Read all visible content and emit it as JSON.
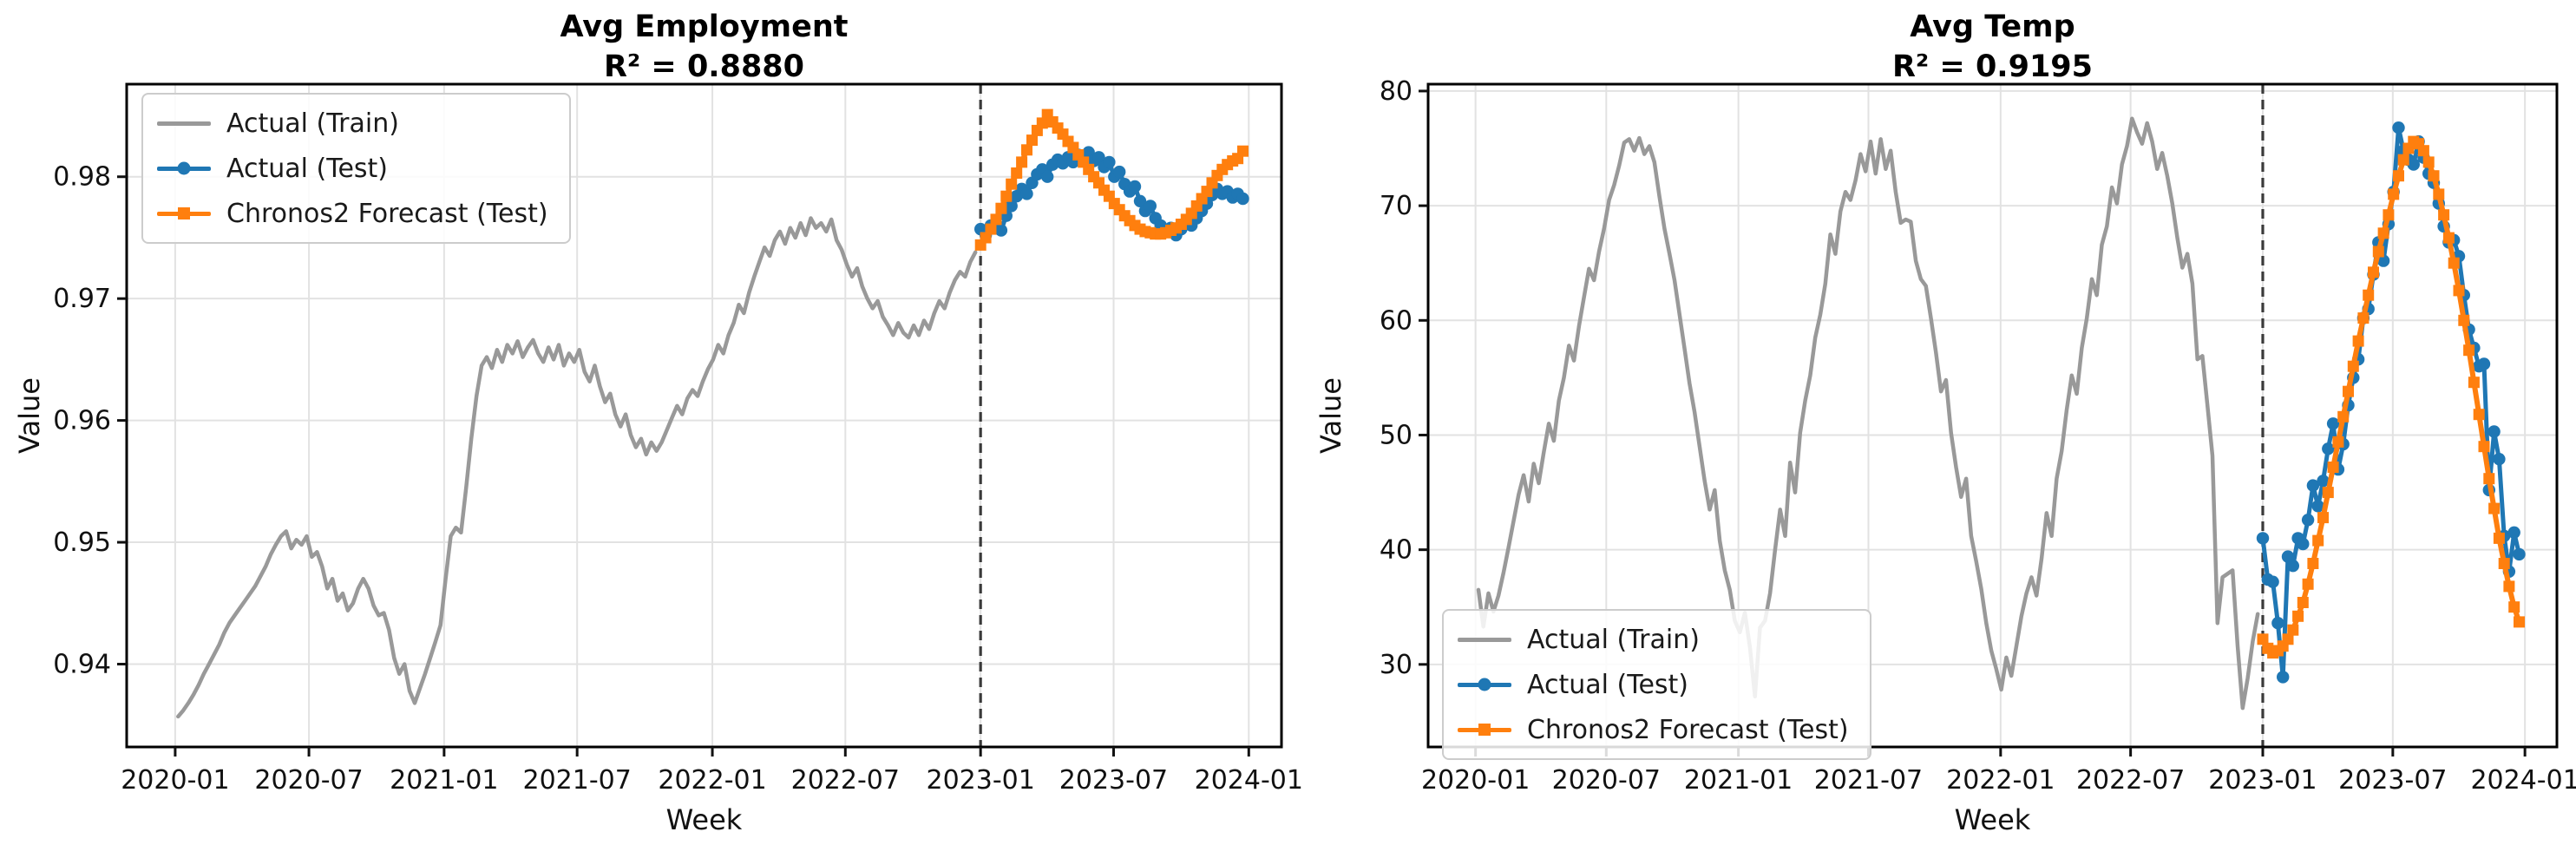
{
  "style": {
    "background": "#ffffff",
    "grid_color": "#e2e2e2",
    "spine_color": "#000000",
    "tick_color": "#111111",
    "split_line_color": "#3a3a3a",
    "train_color": "#999999",
    "test_color": "#1f77b4",
    "forecast_color": "#ff7f0e"
  },
  "chart_data": [
    {
      "type": "line",
      "title": "Avg Employment",
      "subtitle": "R² = 0.8880",
      "r_squared": 0.888,
      "xlabel": "Week",
      "ylabel": "Value",
      "legend_position": "upper-left",
      "grid": true,
      "ylim": [
        0.9332,
        0.9876
      ],
      "xlim_weeks": [
        -10.0,
        214.5
      ],
      "split_week": 156,
      "x_start_date": "2020-01-05",
      "x_freq": "weekly",
      "y_ticks": [
        {
          "value": 0.94,
          "label": "0.94"
        },
        {
          "value": 0.95,
          "label": "0.95"
        },
        {
          "value": 0.96,
          "label": "0.96"
        },
        {
          "value": 0.97,
          "label": "0.97"
        },
        {
          "value": 0.98,
          "label": "0.98"
        }
      ],
      "x_ticks": [
        {
          "week": -0.57,
          "label": "2020-01"
        },
        {
          "week": 25.43,
          "label": "2020-07"
        },
        {
          "week": 51.71,
          "label": "2021-01"
        },
        {
          "week": 77.57,
          "label": "2021-07"
        },
        {
          "week": 103.86,
          "label": "2022-01"
        },
        {
          "week": 129.71,
          "label": "2022-07"
        },
        {
          "week": 156.0,
          "label": "2023-01"
        },
        {
          "week": 181.86,
          "label": "2023-07"
        },
        {
          "week": 208.14,
          "label": "2024-01"
        }
      ],
      "series": [
        {
          "name": "Actual (Train)",
          "color": "#999999",
          "marker": "none",
          "line_width": 4.5,
          "start_week": 0,
          "values": [
            0.9357,
            0.9362,
            0.9368,
            0.9375,
            0.9383,
            0.9392,
            0.94,
            0.9408,
            0.9416,
            0.9426,
            0.9434,
            0.944,
            0.9446,
            0.9452,
            0.9458,
            0.9464,
            0.9472,
            0.948,
            0.949,
            0.9498,
            0.9505,
            0.9509,
            0.9495,
            0.9502,
            0.9498,
            0.9505,
            0.9488,
            0.9492,
            0.948,
            0.9462,
            0.947,
            0.9452,
            0.9458,
            0.9444,
            0.945,
            0.9462,
            0.947,
            0.9462,
            0.9448,
            0.944,
            0.9442,
            0.9428,
            0.9405,
            0.9392,
            0.94,
            0.9378,
            0.9368,
            0.938,
            0.9392,
            0.9405,
            0.9418,
            0.9432,
            0.947,
            0.9505,
            0.9512,
            0.9508,
            0.9545,
            0.9585,
            0.962,
            0.9645,
            0.9652,
            0.9643,
            0.9658,
            0.9648,
            0.9662,
            0.9655,
            0.9665,
            0.9652,
            0.966,
            0.9666,
            0.9655,
            0.9648,
            0.966,
            0.965,
            0.9662,
            0.9645,
            0.9655,
            0.9648,
            0.9658,
            0.964,
            0.9632,
            0.9645,
            0.9628,
            0.9615,
            0.9622,
            0.9605,
            0.9595,
            0.9605,
            0.9588,
            0.9578,
            0.9585,
            0.9572,
            0.9582,
            0.9575,
            0.9582,
            0.9592,
            0.9602,
            0.9612,
            0.9605,
            0.9618,
            0.9625,
            0.962,
            0.9632,
            0.9642,
            0.965,
            0.9662,
            0.9655,
            0.967,
            0.968,
            0.9695,
            0.9688,
            0.9705,
            0.9718,
            0.973,
            0.9742,
            0.9735,
            0.9748,
            0.9755,
            0.9745,
            0.9758,
            0.975,
            0.9762,
            0.9752,
            0.9766,
            0.9758,
            0.9762,
            0.9755,
            0.9765,
            0.9748,
            0.974,
            0.9728,
            0.9718,
            0.9725,
            0.971,
            0.97,
            0.9692,
            0.9698,
            0.9685,
            0.9678,
            0.967,
            0.968,
            0.9672,
            0.9668,
            0.9678,
            0.967,
            0.9682,
            0.9675,
            0.9688,
            0.9698,
            0.9692,
            0.9705,
            0.9715,
            0.9722,
            0.9718,
            0.973,
            0.9738
          ]
        },
        {
          "name": "Actual (Test)",
          "color": "#1f77b4",
          "marker": "circle",
          "line_width": 5,
          "start_week": 156,
          "values": [
            0.9757,
            0.9752,
            0.976,
            0.9762,
            0.9756,
            0.9768,
            0.9776,
            0.9784,
            0.979,
            0.9786,
            0.9795,
            0.9802,
            0.9806,
            0.98,
            0.981,
            0.9814,
            0.9811,
            0.9816,
            0.9812,
            0.9818,
            0.9815,
            0.982,
            0.9813,
            0.9816,
            0.9808,
            0.9812,
            0.98,
            0.9804,
            0.9794,
            0.9788,
            0.9792,
            0.978,
            0.9772,
            0.9776,
            0.9766,
            0.976,
            0.9755,
            0.9758,
            0.9752,
            0.9757,
            0.9762,
            0.976,
            0.9766,
            0.9772,
            0.9778,
            0.9785,
            0.979,
            0.9786,
            0.9788,
            0.9783,
            0.9786,
            0.9782
          ]
        },
        {
          "name": "Chronos2 Forecast (Test)",
          "color": "#ff7f0e",
          "marker": "square",
          "line_width": 6,
          "start_week": 156,
          "values": [
            0.9744,
            0.975,
            0.9757,
            0.9765,
            0.9774,
            0.9784,
            0.9794,
            0.9803,
            0.9812,
            0.9822,
            0.983,
            0.9838,
            0.9844,
            0.9851,
            0.9845,
            0.984,
            0.9835,
            0.9829,
            0.9824,
            0.9818,
            0.9812,
            0.9806,
            0.98,
            0.9795,
            0.9789,
            0.9784,
            0.9778,
            0.9773,
            0.9768,
            0.9764,
            0.976,
            0.9757,
            0.9755,
            0.9754,
            0.9753,
            0.9753,
            0.9754,
            0.9756,
            0.9758,
            0.9761,
            0.9765,
            0.977,
            0.9776,
            0.9782,
            0.9788,
            0.9795,
            0.9801,
            0.9806,
            0.981,
            0.9813,
            0.9815,
            0.9821
          ]
        }
      ]
    },
    {
      "type": "line",
      "title": "Avg Temp",
      "subtitle": "R² = 0.9195",
      "r_squared": 0.9195,
      "xlabel": "Week",
      "ylabel": "Value",
      "legend_position": "lower-left",
      "grid": true,
      "ylim": [
        22.8,
        80.6
      ],
      "xlim_weeks": [
        -10.0,
        214.5
      ],
      "split_week": 156,
      "x_start_date": "2020-01-05",
      "x_freq": "weekly",
      "y_ticks": [
        {
          "value": 30,
          "label": "30"
        },
        {
          "value": 40,
          "label": "40"
        },
        {
          "value": 50,
          "label": "50"
        },
        {
          "value": 60,
          "label": "60"
        },
        {
          "value": 70,
          "label": "70"
        },
        {
          "value": 80,
          "label": "80"
        }
      ],
      "x_ticks": [
        {
          "week": -0.57,
          "label": "2020-01"
        },
        {
          "week": 25.43,
          "label": "2020-07"
        },
        {
          "week": 51.71,
          "label": "2021-01"
        },
        {
          "week": 77.57,
          "label": "2021-07"
        },
        {
          "week": 103.86,
          "label": "2022-01"
        },
        {
          "week": 129.71,
          "label": "2022-07"
        },
        {
          "week": 156.0,
          "label": "2023-01"
        },
        {
          "week": 181.86,
          "label": "2023-07"
        },
        {
          "week": 208.14,
          "label": "2024-01"
        }
      ],
      "series": [
        {
          "name": "Actual (Train)",
          "color": "#999999",
          "marker": "none",
          "line_width": 4.5,
          "start_week": 0,
          "values": [
            36.5,
            33.3,
            36.2,
            34.6,
            36.0,
            38.0,
            40.2,
            42.5,
            44.8,
            46.5,
            44.2,
            47.5,
            45.8,
            48.5,
            51.0,
            49.5,
            53.0,
            55.0,
            57.8,
            56.5,
            59.5,
            62.0,
            64.5,
            63.5,
            66.0,
            68.0,
            70.5,
            71.8,
            73.5,
            75.5,
            75.8,
            74.8,
            75.9,
            74.5,
            75.2,
            73.8,
            70.8,
            68.0,
            65.8,
            63.5,
            60.5,
            57.5,
            54.5,
            52.0,
            49.0,
            46.0,
            43.5,
            45.2,
            40.8,
            38.2,
            36.5,
            33.8,
            32.8,
            34.5,
            31.5,
            27.2,
            33.2,
            33.8,
            36.2,
            40.0,
            43.5,
            41.2,
            47.6,
            45.0,
            50.2,
            53.0,
            55.2,
            58.5,
            60.5,
            63.2,
            67.5,
            65.8,
            69.5,
            71.2,
            70.5,
            72.2,
            74.5,
            73.0,
            75.6,
            72.8,
            75.8,
            73.2,
            74.8,
            71.2,
            68.5,
            68.8,
            68.6,
            65.2,
            63.6,
            63.0,
            60.2,
            57.2,
            53.8,
            54.8,
            50.2,
            47.2,
            44.6,
            46.2,
            41.2,
            39.0,
            36.6,
            33.6,
            31.2,
            29.6,
            27.8,
            30.6,
            29.0,
            31.6,
            34.2,
            36.2,
            37.6,
            36.0,
            39.2,
            43.2,
            41.2,
            46.2,
            48.6,
            52.2,
            55.2,
            53.6,
            57.6,
            60.2,
            63.6,
            62.2,
            66.6,
            68.2,
            71.6,
            70.2,
            73.6,
            75.2,
            77.6,
            76.4,
            75.4,
            77.2,
            75.6,
            73.2,
            74.6,
            72.6,
            70.2,
            67.2,
            64.6,
            65.8,
            63.2,
            56.6,
            56.9,
            52.6,
            48.2,
            33.6,
            37.6,
            37.9,
            38.2,
            31.6,
            26.2,
            28.8,
            32.0,
            34.4
          ]
        },
        {
          "name": "Actual (Test)",
          "color": "#1f77b4",
          "marker": "circle",
          "line_width": 5,
          "start_week": 156,
          "values": [
            41.0,
            37.4,
            37.2,
            33.6,
            28.9,
            39.4,
            38.6,
            41.0,
            40.5,
            42.6,
            45.6,
            43.8,
            46.0,
            48.8,
            51.0,
            47.0,
            49.2,
            52.6,
            55.0,
            56.6,
            60.2,
            61.0,
            64.0,
            66.8,
            65.2,
            68.4,
            71.2,
            76.8,
            74.8,
            74.0,
            73.6,
            75.6,
            74.2,
            72.8,
            72.0,
            70.2,
            68.2,
            66.8,
            67.0,
            65.6,
            62.2,
            59.2,
            57.6,
            56.0,
            56.2,
            45.2,
            50.3,
            47.9,
            41.2,
            38.1,
            41.5,
            39.6
          ]
        },
        {
          "name": "Chronos2 Forecast (Test)",
          "color": "#ff7f0e",
          "marker": "square",
          "line_width": 6,
          "start_week": 156,
          "values": [
            32.2,
            31.4,
            31.0,
            31.2,
            31.6,
            32.2,
            33.0,
            34.2,
            35.4,
            37.0,
            38.8,
            40.8,
            42.8,
            45.0,
            47.2,
            49.4,
            51.6,
            53.8,
            56.0,
            58.2,
            60.2,
            62.2,
            64.2,
            66.0,
            67.6,
            69.2,
            71.0,
            72.6,
            74.0,
            75.0,
            75.6,
            75.4,
            74.8,
            73.8,
            72.6,
            71.0,
            69.2,
            67.2,
            65.0,
            62.6,
            60.0,
            57.4,
            54.6,
            51.8,
            49.0,
            46.2,
            43.6,
            41.0,
            38.8,
            36.8,
            35.0,
            33.7
          ]
        }
      ]
    }
  ]
}
